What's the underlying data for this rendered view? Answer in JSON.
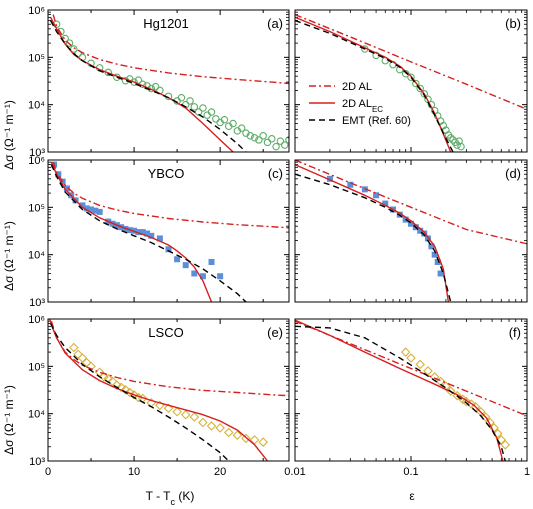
{
  "figure": {
    "y_axis_label": "Δσ (Ω⁻¹ m⁻¹)",
    "x_axis_left_label": "T - T",
    "x_axis_left_label_sub": "c",
    "x_axis_left_label_unit": " (K)",
    "x_axis_right_label": "ε",
    "legend": [
      {
        "text": "2D AL",
        "sub": "",
        "style": "dash-dot",
        "color": "#d62020"
      },
      {
        "text": "2D AL",
        "sub": "EC",
        "style": "solid",
        "color": "#d62020"
      },
      {
        "text": "EMT (Ref. 60)",
        "sub": "",
        "style": "dashed",
        "color": "#000000"
      }
    ]
  },
  "chart_data": [
    {
      "panel": "a",
      "panel_label": "(a)",
      "material": "Hg1201",
      "type": "line",
      "x_axis": "T - Tc (K)",
      "xlim": [
        0,
        28
      ],
      "xscale": "linear",
      "xticks": [
        0,
        10,
        20
      ],
      "ylim": [
        1000,
        1000000
      ],
      "yscale": "log",
      "yticks": [
        "10³",
        "10⁴",
        "10⁵",
        "10⁶"
      ],
      "series": [
        {
          "name": "2D AL",
          "color": "#d62020",
          "style": "dash-dot",
          "x": [
            0.6,
            1,
            2,
            3,
            4,
            6,
            8,
            10,
            14,
            18,
            22,
            26,
            28
          ],
          "y": [
            800000,
            450000,
            230000,
            160000,
            125000,
            90000,
            72000,
            60000,
            47000,
            39000,
            34000,
            30000,
            28000
          ]
        },
        {
          "name": "2D ALEC",
          "color": "#d62020",
          "style": "solid",
          "x": [
            0.3,
            1,
            2,
            3,
            4,
            6,
            8,
            10,
            12,
            14,
            16,
            18,
            20,
            21.5
          ],
          "y": [
            700000,
            400000,
            190000,
            115000,
            85000,
            55000,
            40000,
            30000,
            21000,
            14000,
            8500,
            4000,
            1800,
            1000
          ]
        },
        {
          "name": "EMT (Ref. 60)",
          "color": "#000000",
          "style": "dashed",
          "x": [
            0.3,
            1,
            2,
            3,
            4,
            6,
            8,
            10,
            12,
            14,
            16,
            18,
            20,
            22,
            23
          ],
          "y": [
            600000,
            350000,
            190000,
            120000,
            85000,
            52000,
            38000,
            28000,
            20000,
            14000,
            9000,
            5500,
            3000,
            1500,
            1000
          ]
        }
      ],
      "points": {
        "marker": "open-circle",
        "color": "#5fae6a",
        "x": [
          1,
          1.5,
          2,
          2.5,
          3,
          3.5,
          4,
          5,
          6,
          7,
          8,
          9,
          9.5,
          10,
          10.5,
          11,
          11.5,
          12,
          12.5,
          13,
          14,
          15,
          15.5,
          16,
          16.5,
          17,
          17.5,
          18,
          18.5,
          19,
          19.5,
          20,
          20.5,
          21,
          21.5,
          22,
          22.5,
          23,
          23.5,
          24,
          24.5,
          25,
          25.5,
          26,
          26.5,
          27,
          27.5,
          28
        ],
        "y": [
          500000,
          350000,
          250000,
          200000,
          150000,
          120000,
          100000,
          75000,
          60000,
          48000,
          38000,
          32000,
          35000,
          30000,
          33000,
          27000,
          25000,
          22000,
          24000,
          20000,
          15000,
          12000,
          14000,
          10000,
          12000,
          9000,
          7000,
          8500,
          6000,
          7000,
          5000,
          4200,
          4800,
          3500,
          4000,
          2800,
          3200,
          2500,
          2200,
          2000,
          1800,
          2200,
          1600,
          1900,
          1300,
          1700,
          1400,
          1800
        ]
      }
    },
    {
      "panel": "b",
      "panel_label": "(b)",
      "material": "Hg1201",
      "type": "line",
      "x_axis": "ε",
      "xlim": [
        0.01,
        1
      ],
      "xscale": "log",
      "xticks": [
        0.01,
        0.1,
        1
      ],
      "ylim": [
        1000,
        1000000
      ],
      "yscale": "log",
      "yticks": [
        "10³",
        "10⁴",
        "10⁵",
        "10⁶"
      ],
      "series": [
        {
          "name": "2D AL",
          "color": "#d62020",
          "style": "dash-dot",
          "x": [
            0.01,
            0.03,
            0.1,
            0.3,
            1
          ],
          "y": [
            800000,
            270000,
            80000,
            27000,
            8000
          ]
        },
        {
          "name": "2D ALEC",
          "color": "#d62020",
          "style": "solid",
          "x": [
            0.01,
            0.02,
            0.04,
            0.06,
            0.08,
            0.1,
            0.13,
            0.16,
            0.19,
            0.22
          ],
          "y": [
            700000,
            350000,
            160000,
            100000,
            65000,
            40000,
            17000,
            6500,
            2400,
            1000
          ]
        },
        {
          "name": "EMT (Ref. 60)",
          "color": "#000000",
          "style": "dashed",
          "x": [
            0.01,
            0.02,
            0.04,
            0.06,
            0.08,
            0.1,
            0.13,
            0.16,
            0.19,
            0.23
          ],
          "y": [
            600000,
            320000,
            150000,
            95000,
            62000,
            38000,
            16000,
            6000,
            2500,
            1000
          ]
        }
      ],
      "points": {
        "marker": "open-circle",
        "color": "#5fae6a",
        "x": [
          0.04,
          0.05,
          0.06,
          0.07,
          0.08,
          0.09,
          0.1,
          0.11,
          0.12,
          0.13,
          0.14,
          0.15,
          0.16,
          0.17,
          0.18,
          0.19,
          0.2,
          0.21,
          0.22,
          0.23,
          0.24,
          0.25,
          0.26,
          0.27
        ],
        "y": [
          150000,
          110000,
          85000,
          70000,
          55000,
          45000,
          38000,
          28000,
          22000,
          17000,
          13000,
          10000,
          7500,
          5800,
          4500,
          3600,
          2900,
          2300,
          2000,
          1800,
          1600,
          1400,
          1700,
          1300
        ]
      }
    },
    {
      "panel": "c",
      "panel_label": "(c)",
      "material": "YBCO",
      "type": "line",
      "x_axis": "T - Tc (K)",
      "xlim": [
        0,
        28
      ],
      "xscale": "linear",
      "xticks": [
        0,
        10,
        20
      ],
      "ylim": [
        1000,
        1000000
      ],
      "yscale": "log",
      "yticks": [
        "10³",
        "10⁴",
        "10⁵",
        "10⁶"
      ],
      "series": [
        {
          "name": "2D AL",
          "color": "#d62020",
          "style": "dash-dot",
          "x": [
            0.6,
            1,
            2,
            3,
            4,
            6,
            8,
            10,
            14,
            18,
            22,
            26,
            28
          ],
          "y": [
            900000,
            550000,
            290000,
            200000,
            155000,
            110000,
            88000,
            74000,
            58000,
            49000,
            43000,
            39000,
            37000
          ]
        },
        {
          "name": "2D ALEC",
          "color": "#d62020",
          "style": "solid",
          "x": [
            0.4,
            1,
            2,
            4,
            6,
            8,
            10,
            12,
            14,
            15,
            16,
            17,
            18,
            19
          ],
          "y": [
            900000,
            500000,
            240000,
            100000,
            60000,
            42000,
            31000,
            23000,
            16000,
            12000,
            8500,
            5500,
            2800,
            1000
          ]
        },
        {
          "name": "EMT (Ref. 60)",
          "color": "#000000",
          "style": "dashed",
          "x": [
            0.4,
            1,
            2,
            4,
            6,
            8,
            10,
            12,
            14,
            16,
            18,
            20,
            22,
            23
          ],
          "y": [
            800000,
            450000,
            210000,
            90000,
            52000,
            35000,
            25000,
            18000,
            12000,
            8000,
            5000,
            2800,
            1500,
            1000
          ]
        }
      ],
      "points": {
        "marker": "filled-square",
        "color": "#5b8fd9",
        "x": [
          0.7,
          1.2,
          1.7,
          2.2,
          2.7,
          3.2,
          4,
          4.5,
          5,
          5.5,
          6,
          7,
          7.5,
          8,
          8.5,
          9,
          9.5,
          10,
          10.5,
          11,
          11.5,
          12,
          13,
          14,
          15,
          16,
          17,
          18,
          19,
          20
        ],
        "y": [
          800000,
          500000,
          350000,
          250000,
          180000,
          140000,
          110000,
          95000,
          90000,
          85000,
          80000,
          50000,
          45000,
          42000,
          38000,
          35000,
          33000,
          32000,
          30000,
          30000,
          28000,
          25000,
          22000,
          13000,
          8000,
          6000,
          4000,
          3500,
          7000,
          3500
        ]
      }
    },
    {
      "panel": "d",
      "panel_label": "(d)",
      "material": "YBCO",
      "type": "line",
      "x_axis": "ε",
      "xlim": [
        0.01,
        1
      ],
      "xscale": "log",
      "xticks": [
        0.01,
        0.1,
        1
      ],
      "ylim": [
        1000,
        1000000
      ],
      "yscale": "log",
      "yticks": [
        "10³",
        "10⁴",
        "10⁵",
        "10⁶"
      ],
      "series": [
        {
          "name": "2D AL",
          "color": "#d62020",
          "style": "dash-dot",
          "x": [
            0.01,
            0.03,
            0.1,
            0.3,
            1
          ],
          "y": [
            1000000,
            330000,
            100000,
            34000,
            17000
          ]
        },
        {
          "name": "2D ALEC",
          "color": "#d62020",
          "style": "solid",
          "x": [
            0.01,
            0.02,
            0.04,
            0.06,
            0.08,
            0.1,
            0.13,
            0.16,
            0.19,
            0.21
          ],
          "y": [
            800000,
            380000,
            180000,
            110000,
            75000,
            52000,
            30000,
            15000,
            5000,
            1000
          ]
        },
        {
          "name": "EMT (Ref. 60)",
          "color": "#000000",
          "style": "dashed",
          "x": [
            0.01,
            0.02,
            0.04,
            0.06,
            0.08,
            0.1,
            0.13,
            0.16,
            0.19,
            0.22
          ],
          "y": [
            500000,
            300000,
            160000,
            100000,
            68000,
            47000,
            26000,
            12000,
            4000,
            1000
          ]
        }
      ],
      "points": {
        "marker": "filled-square",
        "color": "#5b8fd9",
        "x": [
          0.02,
          0.03,
          0.04,
          0.05,
          0.06,
          0.07,
          0.08,
          0.09,
          0.1,
          0.11,
          0.12,
          0.13,
          0.14,
          0.15,
          0.16,
          0.17,
          0.18
        ],
        "y": [
          400000,
          300000,
          240000,
          180000,
          120000,
          90000,
          70000,
          55000,
          45000,
          38000,
          32000,
          28000,
          22000,
          15000,
          10000,
          7000,
          4000
        ]
      }
    },
    {
      "panel": "e",
      "panel_label": "(e)",
      "material": "LSCO",
      "type": "line",
      "x_axis": "T - Tc (K)",
      "xlim": [
        0,
        28
      ],
      "xscale": "linear",
      "xticks": [
        0,
        10,
        20
      ],
      "ylim": [
        1000,
        1000000
      ],
      "yscale": "log",
      "yticks": [
        "10³",
        "10⁴",
        "10⁵",
        "10⁶"
      ],
      "series": [
        {
          "name": "2D AL",
          "color": "#d62020",
          "style": "dash-dot",
          "x": [
            0.4,
            1,
            2,
            3,
            4,
            6,
            8,
            10,
            14,
            18,
            22,
            26,
            28
          ],
          "y": [
            900000,
            400000,
            200000,
            140000,
            105000,
            75000,
            58000,
            48000,
            37000,
            31000,
            28000,
            25000,
            24000
          ]
        },
        {
          "name": "2D ALEC",
          "color": "#d62020",
          "style": "solid",
          "x": [
            0.2,
            0.6,
            1,
            2,
            4,
            6,
            8,
            10,
            12,
            14,
            16,
            18,
            20,
            22,
            24,
            25.5
          ],
          "y": [
            1000000,
            600000,
            400000,
            190000,
            85000,
            50000,
            34000,
            25000,
            19000,
            15000,
            12000,
            9500,
            7000,
            4500,
            2200,
            1000
          ]
        },
        {
          "name": "EMT (Ref. 60)",
          "color": "#000000",
          "style": "dashed",
          "x": [
            0.3,
            1,
            2,
            4,
            6,
            8,
            10,
            12,
            14,
            16,
            18,
            20,
            21
          ],
          "y": [
            800000,
            450000,
            250000,
            110000,
            60000,
            36000,
            22000,
            14000,
            8500,
            5000,
            2800,
            1500,
            1000
          ]
        }
      ],
      "points": {
        "marker": "open-diamond",
        "color": "#d6b13b",
        "x": [
          3,
          3.5,
          4,
          4.5,
          5,
          6,
          6.5,
          7,
          7.5,
          8,
          8.5,
          9,
          9.5,
          10,
          10.5,
          11,
          12,
          13,
          14,
          15,
          16,
          17,
          18,
          19,
          20,
          21,
          22,
          23,
          24,
          25
        ],
        "y": [
          250000,
          180000,
          150000,
          120000,
          100000,
          75000,
          60000,
          55000,
          48000,
          40000,
          36000,
          32000,
          28000,
          25000,
          22000,
          21000,
          17000,
          15000,
          13000,
          11000,
          9500,
          8500,
          6500,
          5500,
          5000,
          4000,
          3500,
          3000,
          2800,
          2500
        ]
      }
    },
    {
      "panel": "f",
      "panel_label": "(f)",
      "material": "LSCO",
      "type": "line",
      "x_axis": "ε",
      "xlim": [
        0.01,
        1
      ],
      "xscale": "log",
      "xticks": [
        0.01,
        0.1,
        1
      ],
      "ylim": [
        1000,
        1000000
      ],
      "yscale": "log",
      "yticks": [
        "10³",
        "10⁴",
        "10⁵",
        "10⁶"
      ],
      "series": [
        {
          "name": "2D AL",
          "color": "#d62020",
          "style": "dash-dot",
          "x": [
            0.01,
            0.03,
            0.1,
            0.3,
            1
          ],
          "y": [
            900000,
            300000,
            90000,
            30000,
            9000
          ]
        },
        {
          "name": "2D ALEC",
          "color": "#d62020",
          "style": "solid",
          "x": [
            0.01,
            0.02,
            0.04,
            0.08,
            0.15,
            0.25,
            0.35,
            0.45,
            0.55,
            0.62
          ],
          "y": [
            950000,
            450000,
            200000,
            90000,
            45000,
            25000,
            15000,
            8000,
            3000,
            1000
          ]
        },
        {
          "name": "EMT (Ref. 60)",
          "color": "#000000",
          "style": "dashed",
          "x": [
            0.01,
            0.02,
            0.04,
            0.08,
            0.12,
            0.2,
            0.3,
            0.4,
            0.5,
            0.6,
            0.65
          ],
          "y": [
            700000,
            650000,
            400000,
            150000,
            80000,
            35000,
            17000,
            9000,
            4500,
            2000,
            1000
          ]
        }
      ],
      "points": {
        "marker": "open-diamond",
        "color": "#d6b13b",
        "x": [
          0.09,
          0.1,
          0.12,
          0.14,
          0.16,
          0.18,
          0.2,
          0.22,
          0.25,
          0.28,
          0.3,
          0.33,
          0.36,
          0.4,
          0.44,
          0.48,
          0.52,
          0.56,
          0.6,
          0.65
        ],
        "y": [
          200000,
          150000,
          110000,
          80000,
          60000,
          48000,
          38000,
          30000,
          24000,
          20000,
          18000,
          16000,
          14000,
          11000,
          8500,
          6500,
          5000,
          3800,
          2800,
          2200
        ]
      }
    }
  ]
}
